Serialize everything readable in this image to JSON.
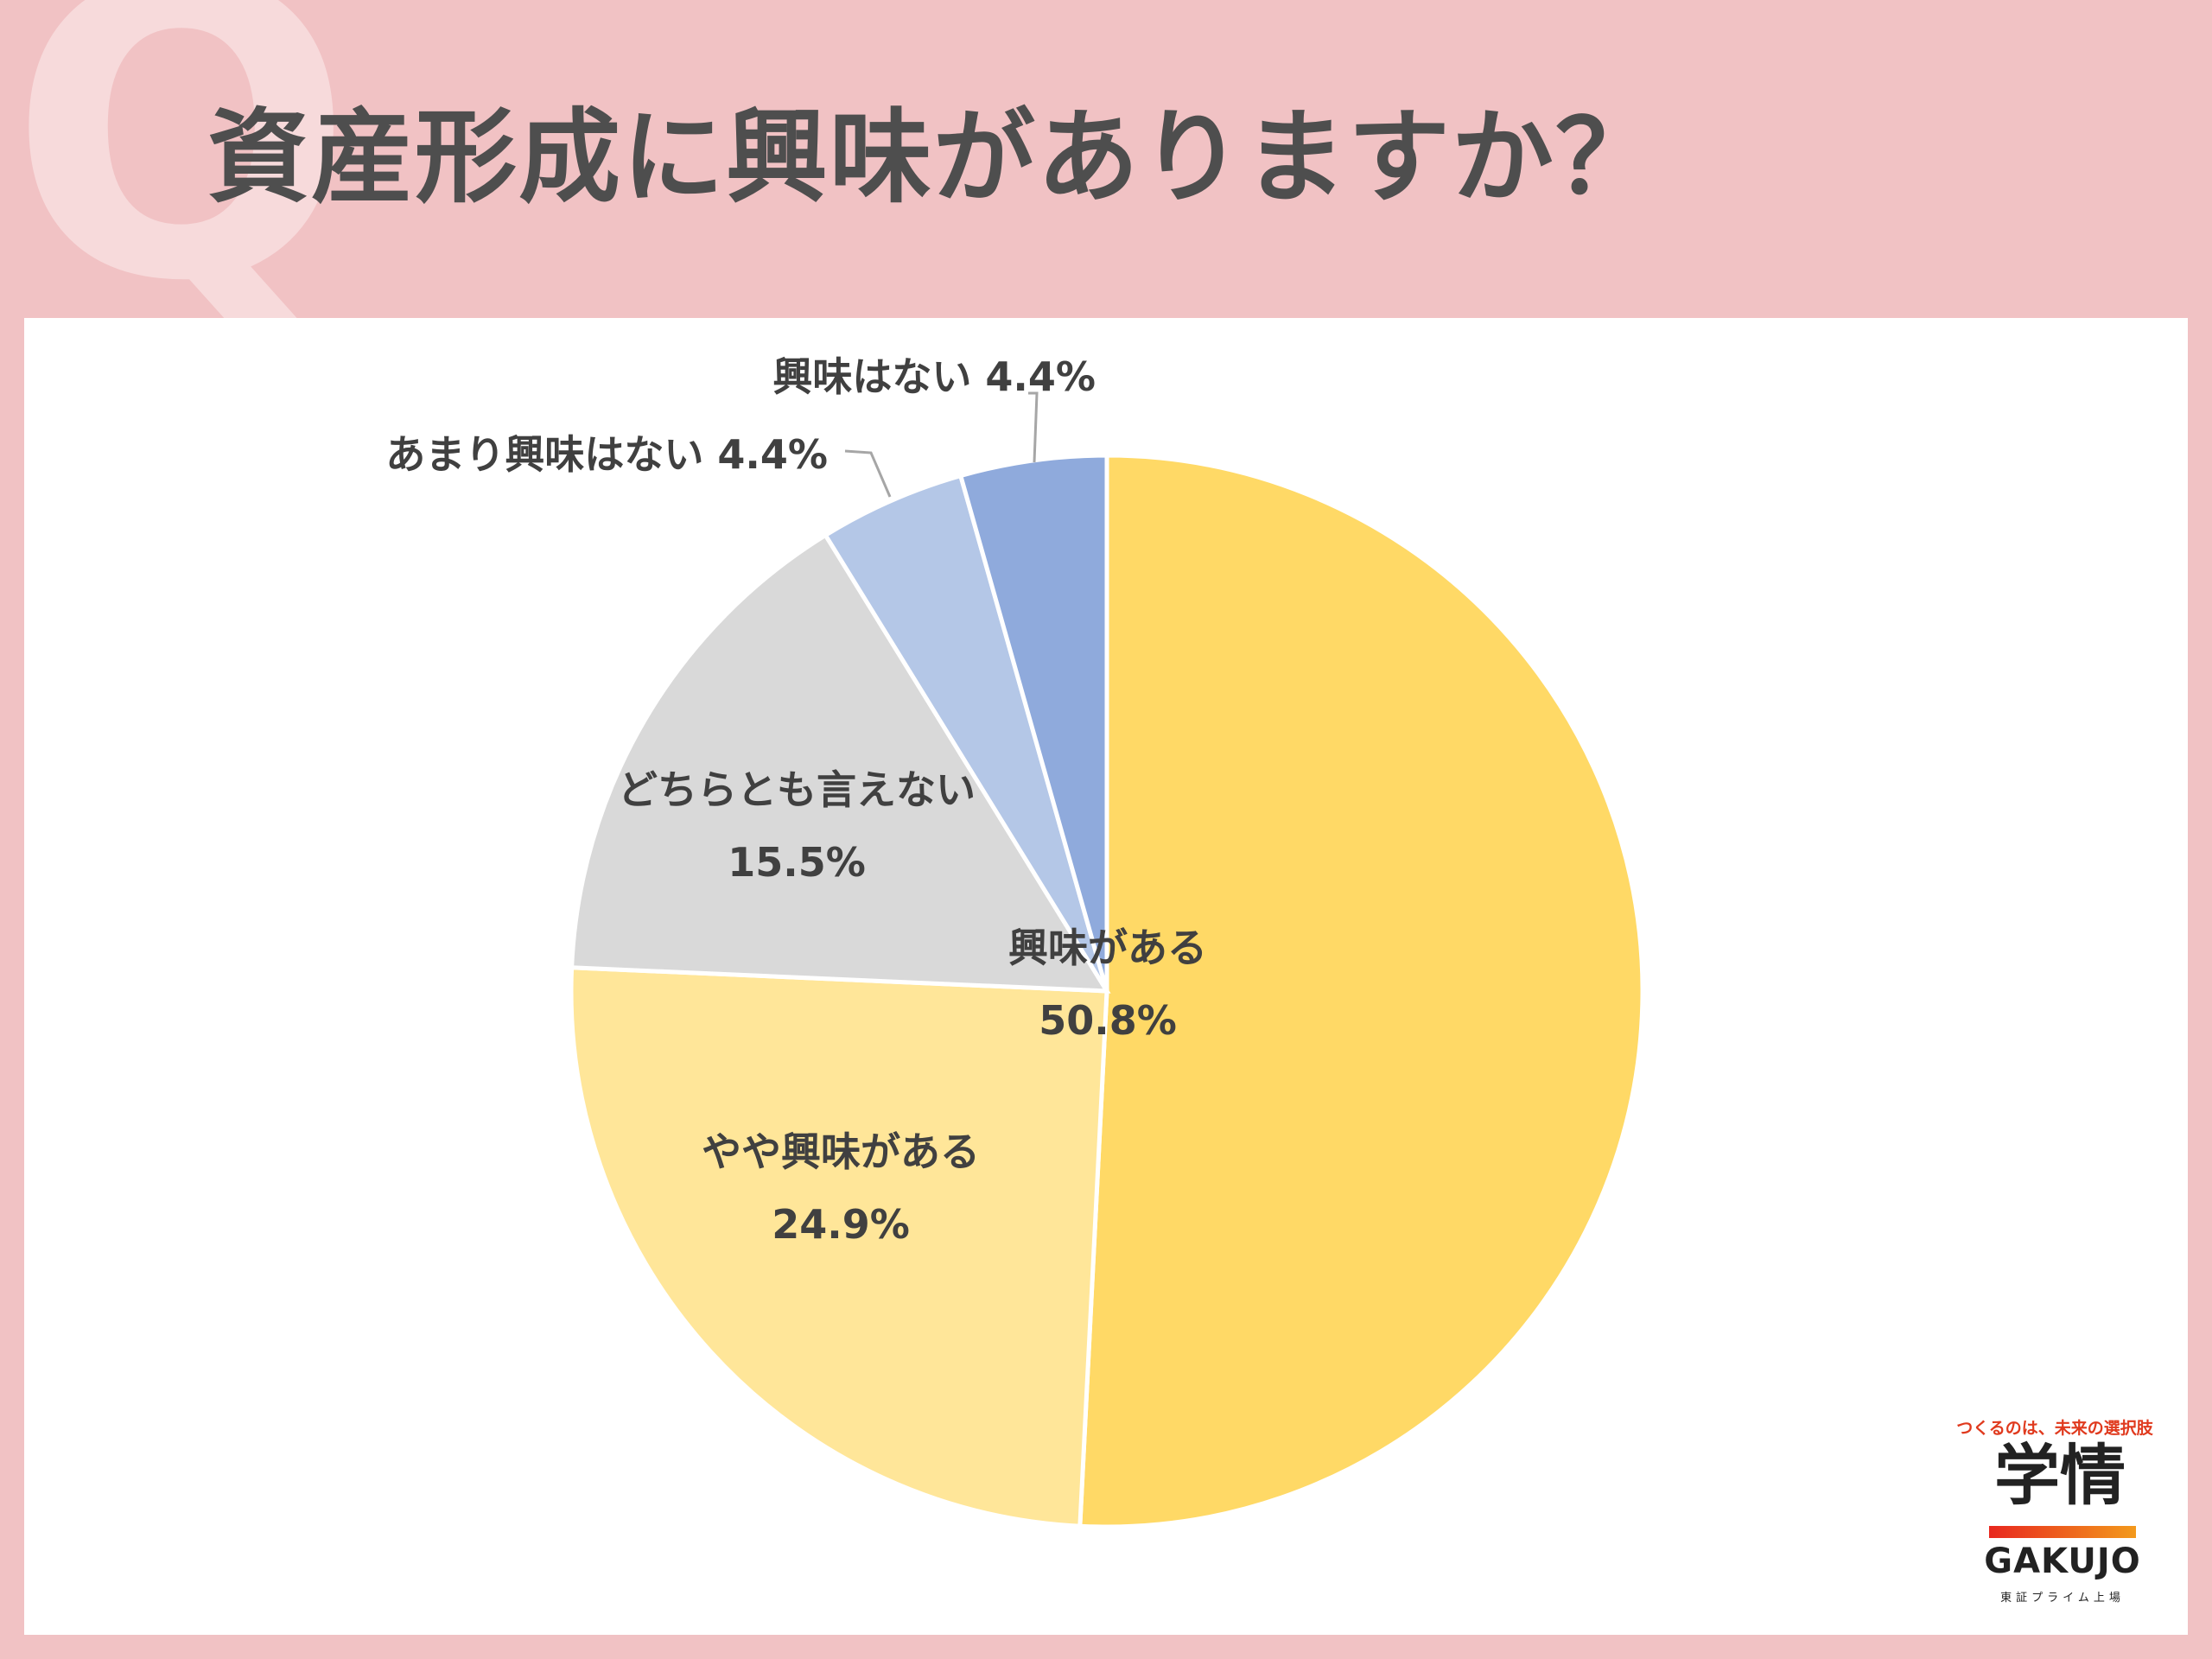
{
  "header": {
    "q_mark": "Q",
    "title": "資産形成に興味がありますか？"
  },
  "chart_data": {
    "type": "pie",
    "title": "資産形成に興味がありますか？",
    "start": "top",
    "direction": "clockwise",
    "slices": [
      {
        "label": "興味がある",
        "value": 50.8,
        "value_label": "50.8%",
        "color": "#FFD966"
      },
      {
        "label": "やや興味がある",
        "value": 24.9,
        "value_label": "24.9%",
        "color": "#FFE699"
      },
      {
        "label": "どちらとも言えない",
        "value": 15.5,
        "value_label": "15.5%",
        "color": "#D9D9D9"
      },
      {
        "label": "あまり興味はない",
        "value": 4.4,
        "value_label": "4.4%",
        "color": "#B4C7E7"
      },
      {
        "label": "興味はない",
        "value": 4.4,
        "value_label": "4.4%",
        "color": "#8FAADC"
      }
    ]
  },
  "logo": {
    "tagline": "つくるのは、未来の選択肢",
    "kanji": "学情",
    "brand": "GAKUJO",
    "sub": "東証プライム上場",
    "bar_colors": [
      "#E8271E",
      "#F39A1C"
    ]
  }
}
